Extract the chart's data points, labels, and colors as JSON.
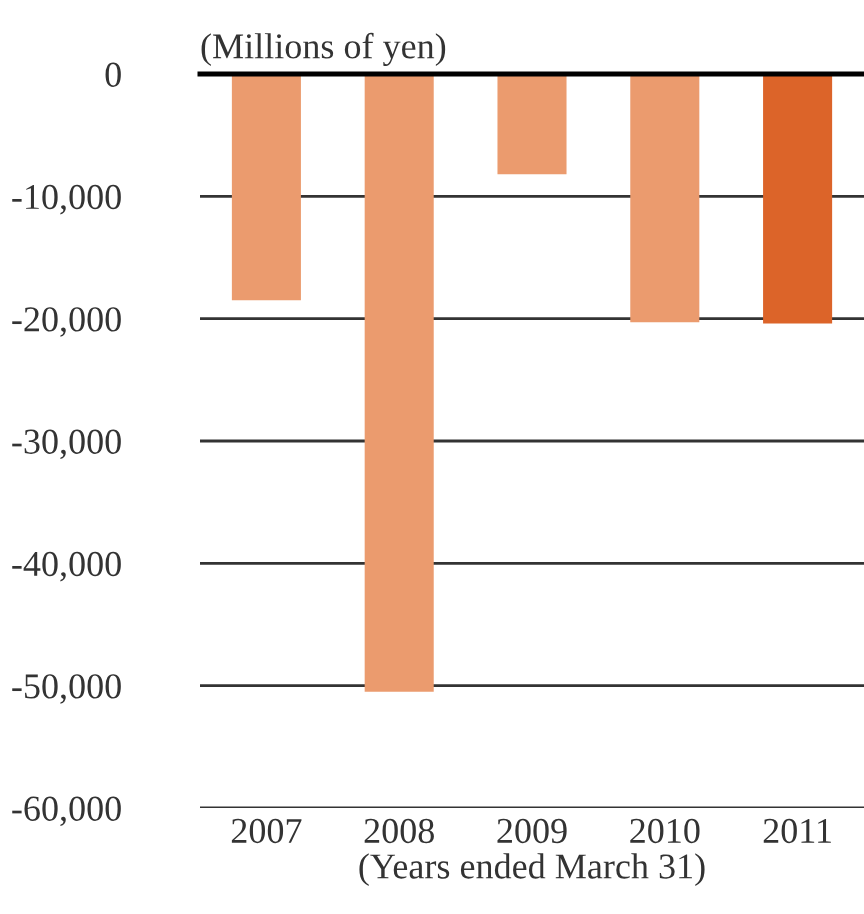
{
  "chart_data": {
    "type": "bar",
    "ylabel": "(Millions of yen)",
    "xlabel": "(Years ended March 31)",
    "categories": [
      "2007",
      "2008",
      "2009",
      "2010",
      "2011"
    ],
    "values": [
      -18500,
      -50500,
      -8200,
      -20300,
      -20400
    ],
    "colors": [
      "#eb9b6e",
      "#eb9b6e",
      "#eb9b6e",
      "#eb9b6e",
      "#dc6429"
    ],
    "ylim": [
      -60000,
      0
    ],
    "yticks": [
      0,
      {
        "value": -10000,
        "label": "-10,000"
      },
      {
        "value": -20000,
        "label": "-20,000"
      },
      {
        "value": -30000,
        "label": "-30,000"
      },
      {
        "value": -40000,
        "label": "-40,000"
      },
      {
        "value": -50000,
        "label": "-50,000"
      },
      {
        "value": -60000,
        "label": "-60,000"
      }
    ],
    "grid": "y"
  }
}
